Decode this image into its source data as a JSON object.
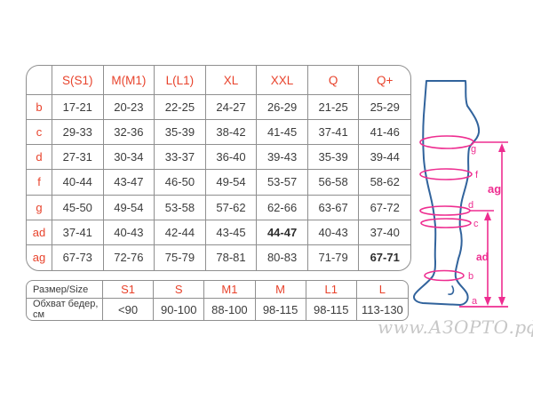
{
  "size_table": {
    "corner_label": "",
    "col_headers": [
      "S(S1)",
      "M(M1)",
      "L(L1)",
      "XL",
      "XXL",
      "Q",
      "Q+"
    ],
    "rows": [
      {
        "label": "b",
        "values": [
          "17-21",
          "20-23",
          "22-25",
          "24-27",
          "26-29",
          "21-25",
          "25-29"
        ]
      },
      {
        "label": "c",
        "values": [
          "29-33",
          "32-36",
          "35-39",
          "38-42",
          "41-45",
          "37-41",
          "41-46"
        ]
      },
      {
        "label": "d",
        "values": [
          "27-31",
          "30-34",
          "33-37",
          "36-40",
          "39-43",
          "35-39",
          "39-44"
        ]
      },
      {
        "label": "f",
        "values": [
          "40-44",
          "43-47",
          "46-50",
          "49-54",
          "53-57",
          "56-58",
          "58-62"
        ]
      },
      {
        "label": "g",
        "values": [
          "45-50",
          "49-54",
          "53-58",
          "57-62",
          "62-66",
          "63-67",
          "67-72"
        ]
      },
      {
        "label": "ad",
        "values": [
          "37-41",
          "40-43",
          "42-44",
          "43-45",
          "44-47",
          "40-43",
          "37-40"
        ]
      },
      {
        "label": "ag",
        "values": [
          "67-73",
          "72-76",
          "75-79",
          "78-81",
          "80-83",
          "71-79",
          "67-71"
        ]
      }
    ],
    "bold_cells": [
      [
        5,
        4
      ],
      [
        6,
        6
      ]
    ]
  },
  "hip_table": {
    "header_label": "Размер/Size",
    "measure_label": "Обхват бедер, см",
    "sizes": [
      "S1",
      "S",
      "M1",
      "M",
      "L1",
      "L"
    ],
    "values": [
      "<90",
      "90-100",
      "88-100",
      "98-115",
      "98-115",
      "113-130"
    ]
  },
  "leg_diagram": {
    "labels": {
      "g": "g",
      "f": "f",
      "d": "d",
      "c": "c",
      "b": "b",
      "a": "a",
      "ad": "ad",
      "ag": "ag"
    }
  },
  "watermark": {
    "text": "www.АЗОРТО.рф"
  },
  "colors": {
    "accent_red": "#e8432c",
    "diagram_pink": "#ee2d90",
    "leg_blue": "#31639c",
    "grid_gray": "#8f8f8f",
    "text_dark": "#3c3c3c",
    "watermark_gray": "#c7c7c7"
  }
}
